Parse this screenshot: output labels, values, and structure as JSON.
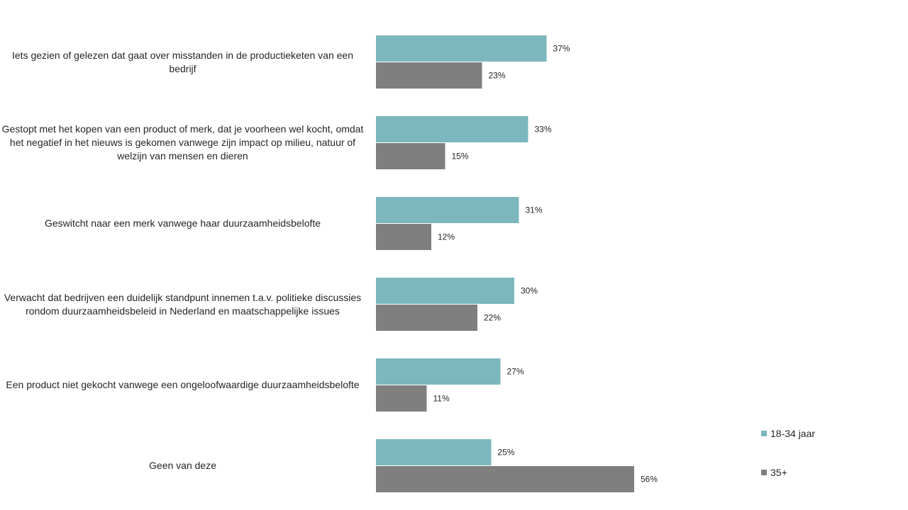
{
  "chart_data": {
    "type": "bar",
    "orientation": "horizontal",
    "categories": [
      "Iets gezien of gelezen dat gaat over misstanden in de productieketen van een bedrijf",
      "Gestopt met het kopen van een product of merk, dat je voorheen wel kocht, omdat het negatief in het nieuws is gekomen vanwege zijn impact op milieu, natuur of welzijn van mensen en dieren",
      "Geswitcht naar een merk vanwege haar duurzaamheidsbelofte",
      "Verwacht dat bedrijven een duidelijk standpunt innemen t.a.v. politieke discussies rondom duurzaamheidsbeleid in Nederland en maatschappelijke issues",
      "Een product niet gekocht vanwege een ongeloofwaardige duurzaamheidsbelofte",
      "Geen van deze"
    ],
    "series": [
      {
        "name": "18-34 jaar",
        "color": "#7bb7bc",
        "values": [
          37,
          33,
          31,
          30,
          27,
          25
        ],
        "labels": [
          "37%",
          "33%",
          "31%",
          "30%",
          "27%",
          "25%"
        ]
      },
      {
        "name": "35+",
        "color": "#7f7f7f",
        "values": [
          23,
          15,
          12,
          22,
          11,
          56
        ],
        "labels": [
          "23%",
          "15%",
          "12%",
          "22%",
          "11%",
          "56%"
        ]
      }
    ],
    "value_unit": "%",
    "xlim": [
      0,
      60
    ],
    "grid": false,
    "legend_position": "bottom-right"
  }
}
